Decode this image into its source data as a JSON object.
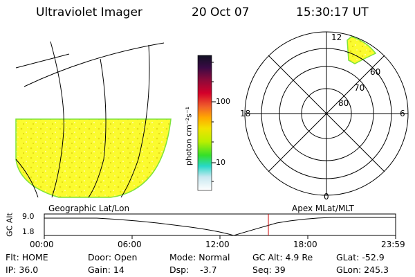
{
  "header": {
    "instrument": "Ultraviolet Imager",
    "date": "20 Oct 07",
    "time": "15:30:17 UT"
  },
  "colorbar": {
    "unit_label": "photon cm⁻²s⁻¹",
    "ticks": [
      "100",
      "10"
    ],
    "colors": [
      "#111122",
      "#3a0a45",
      "#8a0a3a",
      "#d4002a",
      "#f0602a",
      "#ffa800",
      "#f2e200",
      "#b8ef00",
      "#34df2a",
      "#28d8c8",
      "#c8e8f0",
      "#ffffff"
    ]
  },
  "geo_panel": {
    "label": "Geographic Lat/Lon",
    "fill_color": "#fbfb2e",
    "edge_color": "#7ee33a"
  },
  "polar_panel": {
    "label": "Apex MLat/MLT",
    "mlt_labels": {
      "top": "12",
      "left": "18",
      "right": "6",
      "bottom": "0"
    },
    "lat_labels": [
      "60",
      "70",
      "80"
    ]
  },
  "altitude_plot": {
    "ylabel": "GC Alt",
    "ticks": [
      "9.0",
      "1.8"
    ],
    "x_ticks": [
      "00:00",
      "06:00",
      "12:00",
      "18:00",
      "23:59"
    ],
    "current_time_color": "#cc0000"
  },
  "footer": {
    "flt": "Flt: HOME",
    "ip": "IP: 36.0",
    "door": "Door: Open",
    "gain": "Gain: 14",
    "mode": "Mode: Normal",
    "dsp": "Dsp:    -3.7",
    "gcalt": "GC Alt: 4.9 Re",
    "seq": "Seq: 39",
    "glat": "GLat: -52.9",
    "glon": "GLon: 245.3"
  }
}
